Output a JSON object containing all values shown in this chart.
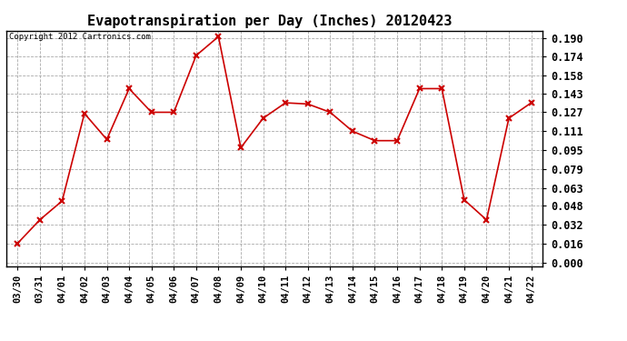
{
  "title": "Evapotranspiration per Day (Inches) 20120423",
  "copyright": "Copyright 2012 Cartronics.com",
  "dates": [
    "03/30",
    "03/31",
    "04/01",
    "04/02",
    "04/03",
    "04/04",
    "04/05",
    "04/06",
    "04/07",
    "04/08",
    "04/09",
    "04/10",
    "04/11",
    "04/12",
    "04/13",
    "04/14",
    "04/15",
    "04/16",
    "04/17",
    "04/18",
    "04/19",
    "04/20",
    "04/21",
    "04/22"
  ],
  "values": [
    0.016,
    0.036,
    0.052,
    0.126,
    0.104,
    0.147,
    0.127,
    0.127,
    0.175,
    0.191,
    0.097,
    0.122,
    0.135,
    0.134,
    0.127,
    0.111,
    0.103,
    0.103,
    0.147,
    0.147,
    0.053,
    0.036,
    0.122,
    0.135
  ],
  "line_color": "#cc0000",
  "marker": "x",
  "marker_size": 4,
  "marker_color": "#cc0000",
  "background_color": "#ffffff",
  "grid_color": "#aaaaaa",
  "yticks": [
    0.0,
    0.016,
    0.032,
    0.048,
    0.063,
    0.079,
    0.095,
    0.111,
    0.127,
    0.143,
    0.158,
    0.174,
    0.19
  ],
  "title_fontsize": 11,
  "copyright_fontsize": 6.5,
  "tick_fontsize": 7.5,
  "ytick_fontsize": 8.5
}
